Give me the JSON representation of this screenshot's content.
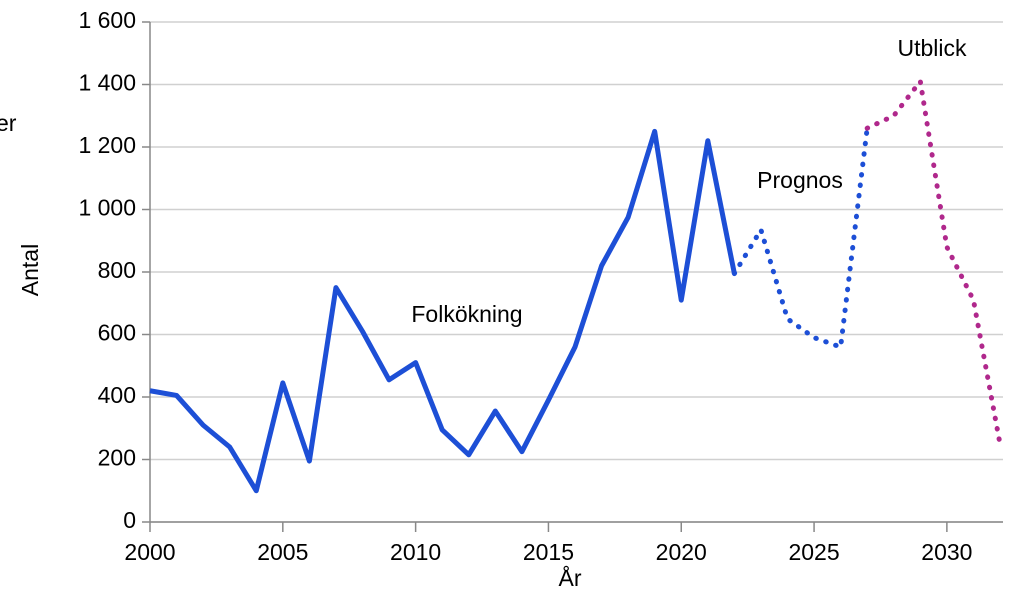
{
  "chart_data": {
    "type": "line",
    "x_label": "År",
    "y_label": "Antal",
    "clipped_text": "er",
    "xlim": [
      2000,
      2032
    ],
    "xticks": [
      2000,
      2005,
      2010,
      2015,
      2020,
      2025,
      2030
    ],
    "ylim": [
      0,
      1600
    ],
    "yticks": [
      0,
      200,
      400,
      600,
      800,
      {
        "value": 1000,
        "label": "1 000"
      },
      {
        "value": 1200,
        "label": "1 200"
      },
      {
        "value": 1400,
        "label": "1 400"
      },
      {
        "value": 1600,
        "label": "1 600"
      }
    ],
    "grid": true,
    "series": [
      {
        "name": "Folkökning",
        "color": "#1d4fd6",
        "line_style": "solid",
        "x": [
          2000,
          2001,
          2002,
          2003,
          2004,
          2005,
          2006,
          2007,
          2008,
          2009,
          2010,
          2011,
          2012,
          2013,
          2014,
          2015,
          2016,
          2017,
          2018,
          2019,
          2020,
          2021,
          2022
        ],
        "values": [
          420,
          405,
          310,
          240,
          100,
          445,
          195,
          750,
          610,
          455,
          510,
          295,
          215,
          355,
          225,
          390,
          560,
          820,
          975,
          1250,
          710,
          1220,
          795
        ]
      },
      {
        "name": "Prognos",
        "color": "#1d4fd6",
        "line_style": "dotted",
        "x": [
          2022,
          2023,
          2024,
          2025,
          2026,
          2027
        ],
        "values": [
          795,
          935,
          650,
          590,
          560,
          1260
        ]
      },
      {
        "name": "Utblick",
        "color": "#b0288c",
        "line_style": "dotted",
        "x": [
          2027,
          2028,
          2029,
          2030,
          2031,
          2032
        ],
        "values": [
          1260,
          1300,
          1410,
          880,
          710,
          250
        ]
      }
    ]
  }
}
